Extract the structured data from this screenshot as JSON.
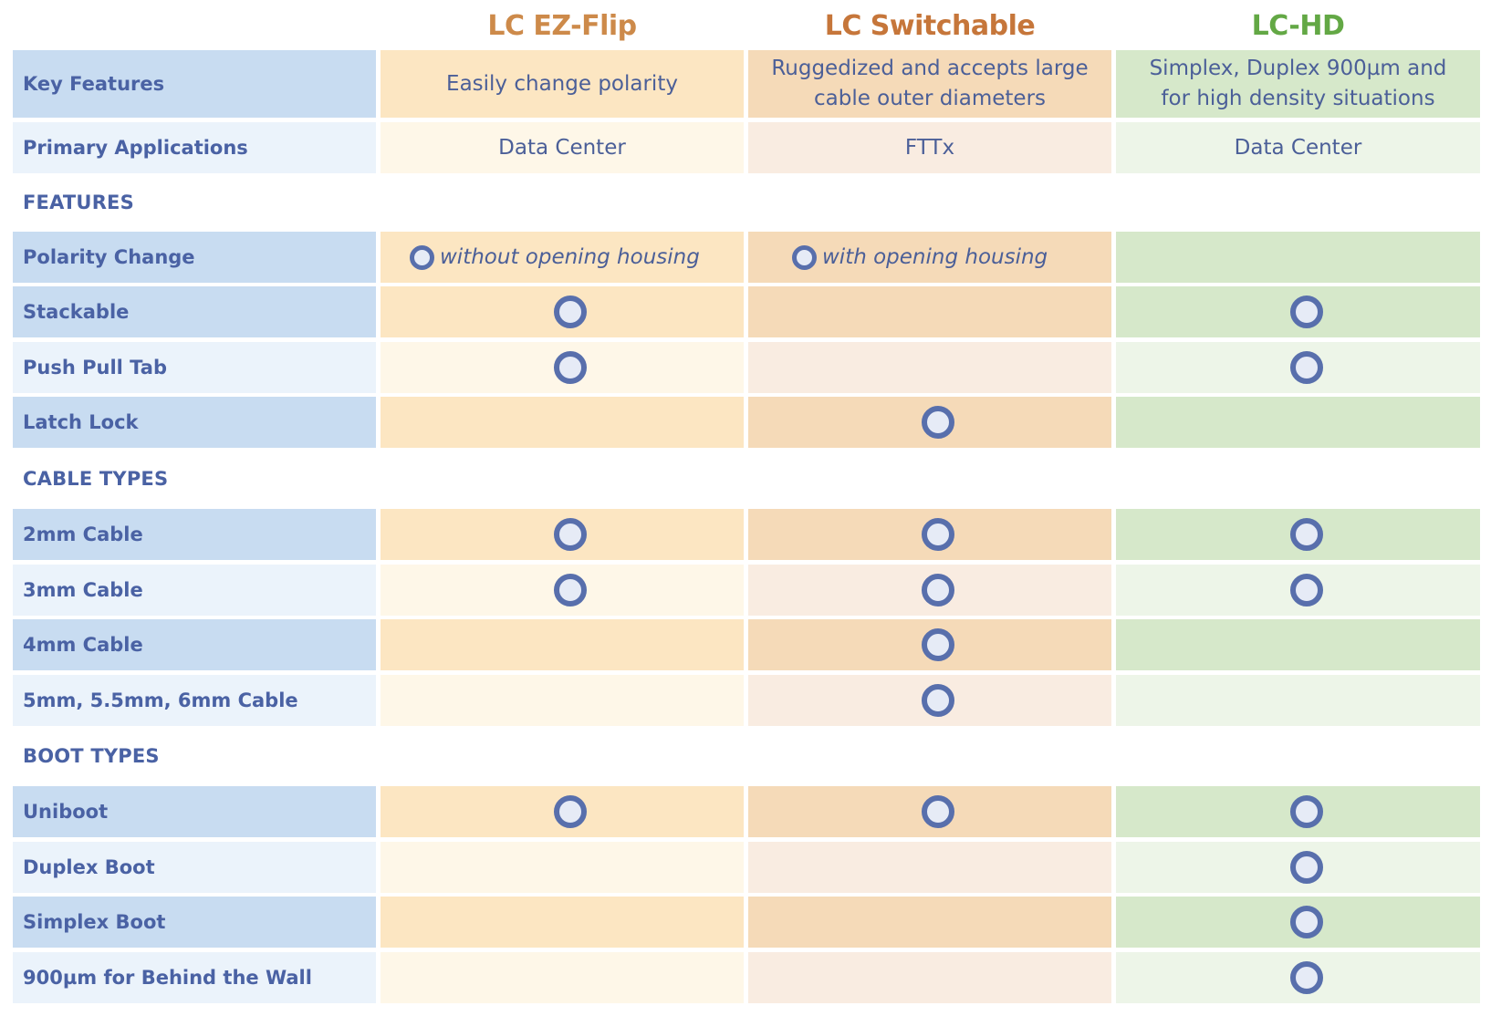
{
  "columns": [
    {
      "name": "LC EZ-Flip",
      "color": "#cd8a4a"
    },
    {
      "name": "LC Switchable",
      "color": "#c6763a"
    },
    {
      "name": "LC-HD",
      "color": "#63a845"
    }
  ],
  "key_features": {
    "label": "Key Features",
    "values": [
      "Easily change polarity",
      "Ruggedized and accepts large cable outer diameters",
      "Simplex, Duplex 900µm and for high density situations"
    ]
  },
  "primary_applications": {
    "label": "Primary Applications",
    "values": [
      "Data Center",
      "FTTx",
      "Data Center"
    ]
  },
  "sections": {
    "features": "FEATURES",
    "cable_types": "CABLE TYPES",
    "boot_types": "BOOT TYPES"
  },
  "polarity_change": {
    "label": "Polarity Change",
    "notes": [
      "without opening housing",
      "with opening housing",
      ""
    ]
  },
  "feature_rows": [
    {
      "label": "Stackable",
      "marks": [
        true,
        false,
        true
      ]
    },
    {
      "label": "Push Pull Tab",
      "marks": [
        true,
        false,
        true
      ]
    },
    {
      "label": "Latch Lock",
      "marks": [
        false,
        true,
        false
      ]
    }
  ],
  "cable_rows": [
    {
      "label": "2mm Cable",
      "marks": [
        true,
        true,
        true
      ]
    },
    {
      "label": "3mm Cable",
      "marks": [
        true,
        true,
        true
      ]
    },
    {
      "label": "4mm Cable",
      "marks": [
        false,
        true,
        false
      ]
    },
    {
      "label": "5mm, 5.5mm, 6mm Cable",
      "marks": [
        false,
        true,
        false
      ]
    }
  ],
  "boot_rows": [
    {
      "label": "Uniboot",
      "marks": [
        true,
        true,
        true
      ]
    },
    {
      "label": "Duplex Boot",
      "marks": [
        false,
        false,
        true
      ]
    },
    {
      "label": "Simplex Boot",
      "marks": [
        false,
        false,
        true
      ]
    },
    {
      "label": "900µm for Behind the Wall",
      "marks": [
        false,
        false,
        true
      ]
    }
  ],
  "mark_icon": "circle-check-icon"
}
